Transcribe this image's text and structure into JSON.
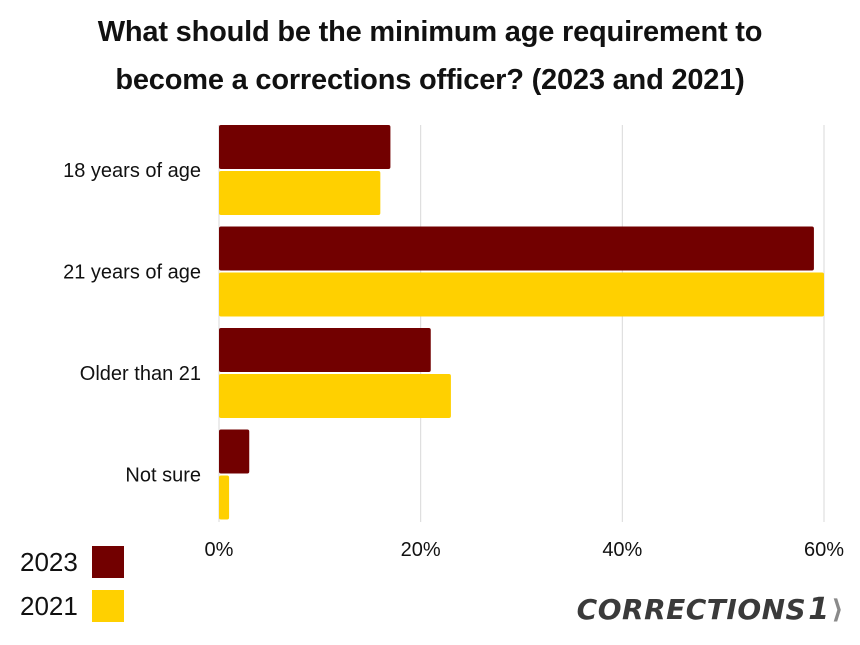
{
  "title_lines": [
    "What should be the minimum age requirement to",
    "become a corrections officer? (2023 and 2021)"
  ],
  "logo": {
    "word": "CORRECTIONS",
    "number": "1"
  },
  "colors": {
    "series_2023": "#720000",
    "series_2021": "#ffd000",
    "grid": "#d9d9d9"
  },
  "chart_data": {
    "type": "bar",
    "orientation": "horizontal",
    "title": "What should be the minimum age requirement to become a corrections officer? (2023 and 2021)",
    "categories": [
      "18 years of age",
      "21 years of age",
      "Older than 21",
      "Not sure"
    ],
    "series": [
      {
        "name": "2023",
        "values": [
          17,
          59,
          21,
          3
        ]
      },
      {
        "name": "2021",
        "values": [
          16,
          60,
          23,
          1
        ]
      }
    ],
    "xlim": [
      0,
      60
    ],
    "xticks": [
      0,
      20,
      40,
      60
    ],
    "xtick_labels": [
      "0%",
      "20%",
      "40%",
      "60%"
    ],
    "grid": true,
    "legend_position": "bottom-left"
  }
}
